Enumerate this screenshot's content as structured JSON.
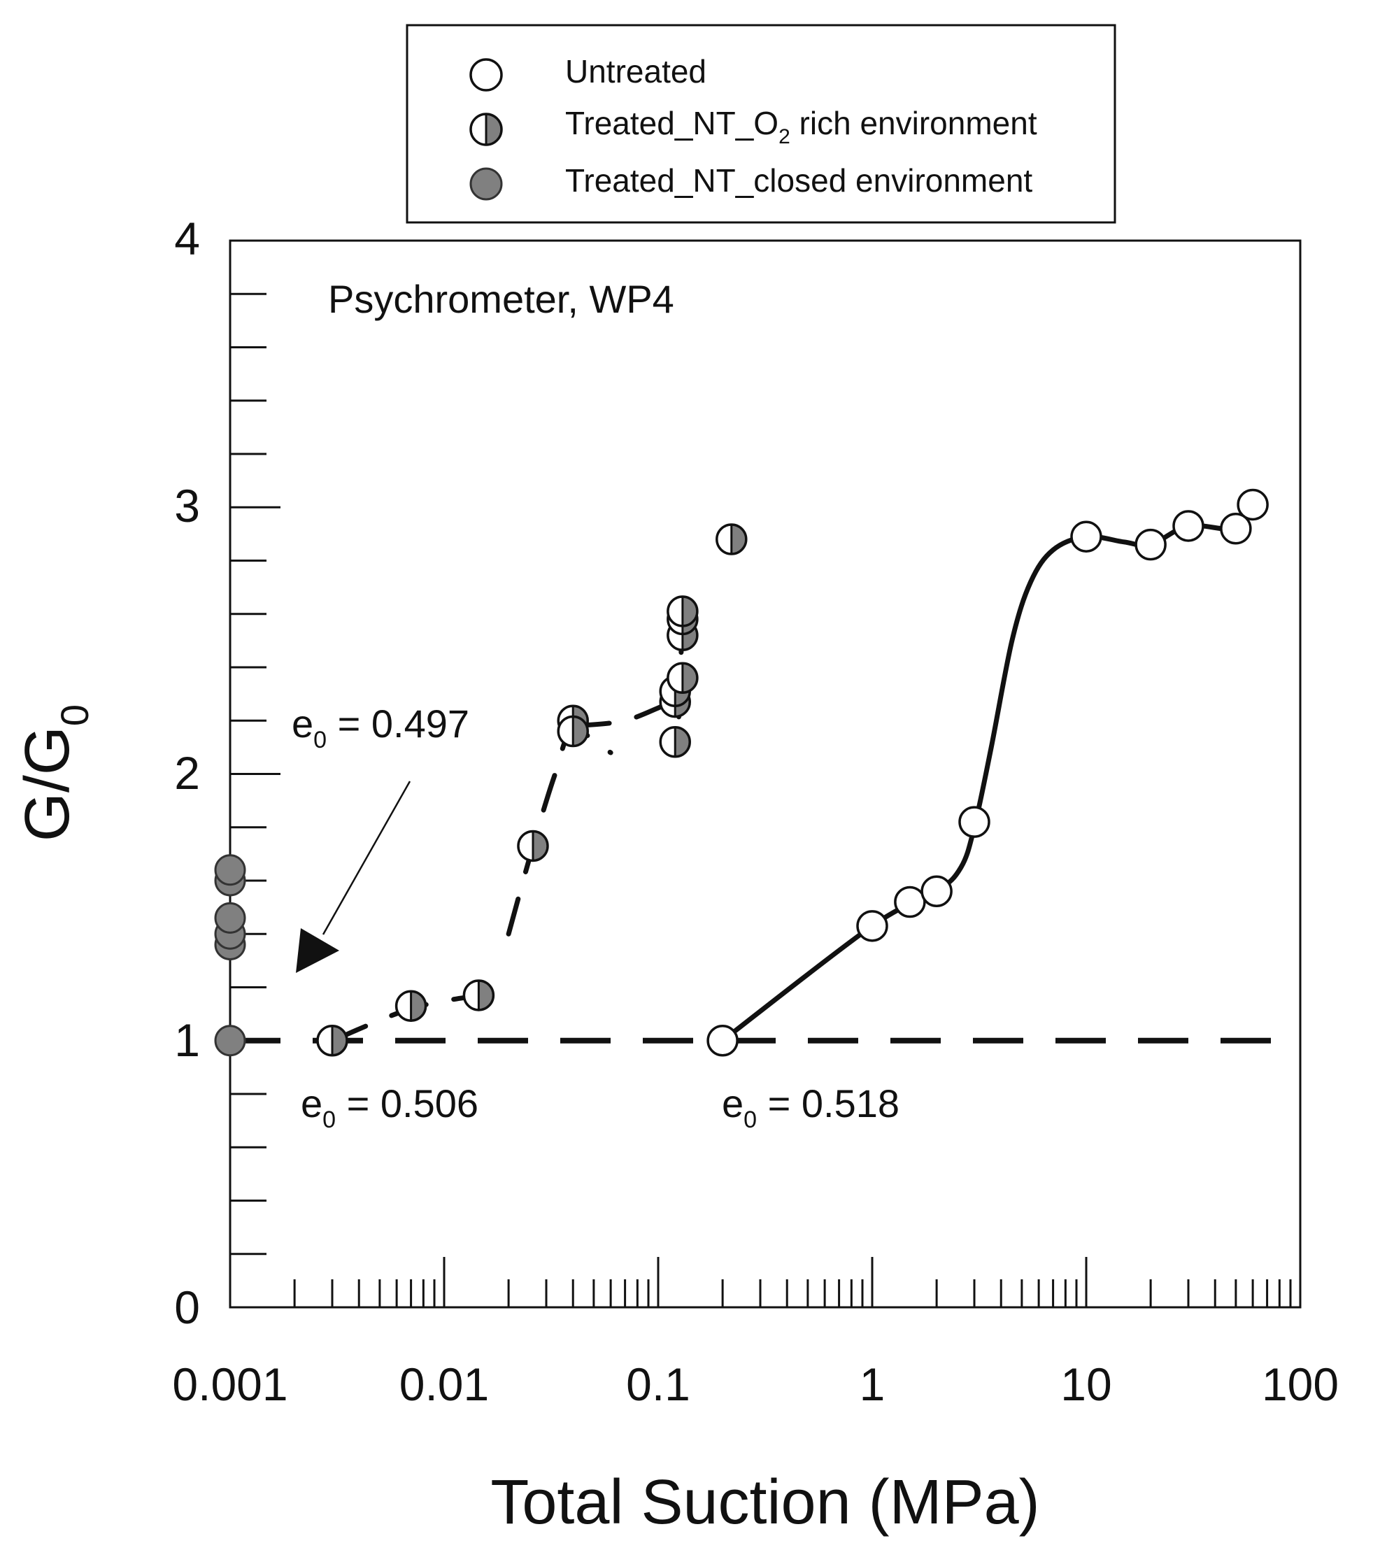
{
  "chart_data": {
    "type": "scatter",
    "title": "",
    "xlabel": "Total Suction (MPa)",
    "ylabel": "G/G0",
    "ylabel_main": "G/G",
    "ylabel_sub": "0",
    "xscale": "log",
    "xlim": [
      0.001,
      100
    ],
    "ylim": [
      0,
      4
    ],
    "x_ticks": [
      0.001,
      0.01,
      0.1,
      1,
      10,
      100
    ],
    "x_tick_labels": [
      "0.001",
      "0.01",
      "0.1",
      "1",
      "10",
      "100"
    ],
    "y_ticks": [
      0,
      1,
      2,
      3,
      4
    ],
    "y_tick_labels": [
      "0",
      "1",
      "2",
      "3",
      "4"
    ],
    "grid": false,
    "legend_position": "top, above plot",
    "legend": [
      {
        "label_parts": [
          "Treated_NT_O",
          "2",
          " rich environment"
        ],
        "marker": "half",
        "text": "Treated_NT_O2 rich environment"
      },
      {
        "label": "Untreated",
        "marker": "open"
      },
      {
        "label": "Treated_NT_closed environment",
        "marker": "filled"
      }
    ],
    "annotations": {
      "method": "Psychrometer, WP4",
      "e0_label": "e",
      "e0_sub": "0",
      "e0_values": [
        " = 0.497",
        " = 0.506",
        " = 0.518"
      ]
    },
    "reference_line": {
      "y": 1,
      "style": "dashed"
    },
    "series": [
      {
        "name": "Untreated",
        "marker": "open",
        "points": [
          [
            0.2,
            1.0
          ],
          [
            1.0,
            1.43
          ],
          [
            1.5,
            1.52
          ],
          [
            2.0,
            1.56
          ],
          [
            3.0,
            1.82
          ],
          [
            10,
            2.89
          ],
          [
            20,
            2.86
          ],
          [
            30,
            2.93
          ],
          [
            50,
            2.92
          ],
          [
            60,
            3.01
          ]
        ]
      },
      {
        "name": "Treated_NT_O2 rich environment",
        "marker": "half",
        "points": [
          [
            0.003,
            1.0
          ],
          [
            0.007,
            1.13
          ],
          [
            0.0145,
            1.17
          ],
          [
            0.026,
            1.73
          ],
          [
            0.04,
            2.2
          ],
          [
            0.04,
            2.16
          ],
          [
            0.12,
            2.12
          ],
          [
            0.12,
            2.27
          ],
          [
            0.12,
            2.31
          ],
          [
            0.13,
            2.36
          ],
          [
            0.13,
            2.52
          ],
          [
            0.13,
            2.58
          ],
          [
            0.13,
            2.61
          ],
          [
            0.22,
            2.88
          ]
        ]
      },
      {
        "name": "Treated_NT_closed environment",
        "marker": "filled",
        "points": [
          [
            0.001,
            1.0
          ],
          [
            0.001,
            1.36
          ],
          [
            0.001,
            1.4
          ],
          [
            0.001,
            1.46
          ],
          [
            0.001,
            1.6
          ],
          [
            0.001,
            1.64
          ]
        ]
      }
    ],
    "fit_curves": [
      {
        "name": "Untreated fit",
        "style": "solid",
        "points": [
          [
            0.2,
            1.0
          ],
          [
            1.0,
            1.43
          ],
          [
            2.0,
            1.56
          ],
          [
            2.6,
            1.65
          ],
          [
            3.0,
            1.8
          ],
          [
            3.6,
            2.1
          ],
          [
            4.5,
            2.5
          ],
          [
            5.5,
            2.72
          ],
          [
            7.0,
            2.84
          ],
          [
            10,
            2.89
          ],
          [
            15,
            2.87
          ],
          [
            20,
            2.86
          ],
          [
            30,
            2.93
          ],
          [
            50,
            2.92
          ],
          [
            60,
            3.0
          ]
        ]
      },
      {
        "name": "O2 rich fit - segment 1",
        "style": "dashed",
        "points": [
          [
            0.003,
            1.0
          ],
          [
            0.007,
            1.12
          ],
          [
            0.0145,
            1.17
          ]
        ]
      },
      {
        "name": "O2 rich fit - segment 2",
        "style": "dashed",
        "points": [
          [
            0.02,
            1.4
          ],
          [
            0.026,
            1.73
          ],
          [
            0.033,
            2.0
          ],
          [
            0.04,
            2.16
          ],
          [
            0.06,
            2.08
          ]
        ]
      },
      {
        "name": "O2 rich fit - segment 3",
        "style": "dashed",
        "points": [
          [
            0.04,
            2.18
          ],
          [
            0.07,
            2.2
          ],
          [
            0.12,
            2.27
          ],
          [
            0.125,
            2.22
          ],
          [
            0.13,
            2.6
          ],
          [
            0.135,
            2.66
          ]
        ]
      }
    ]
  }
}
